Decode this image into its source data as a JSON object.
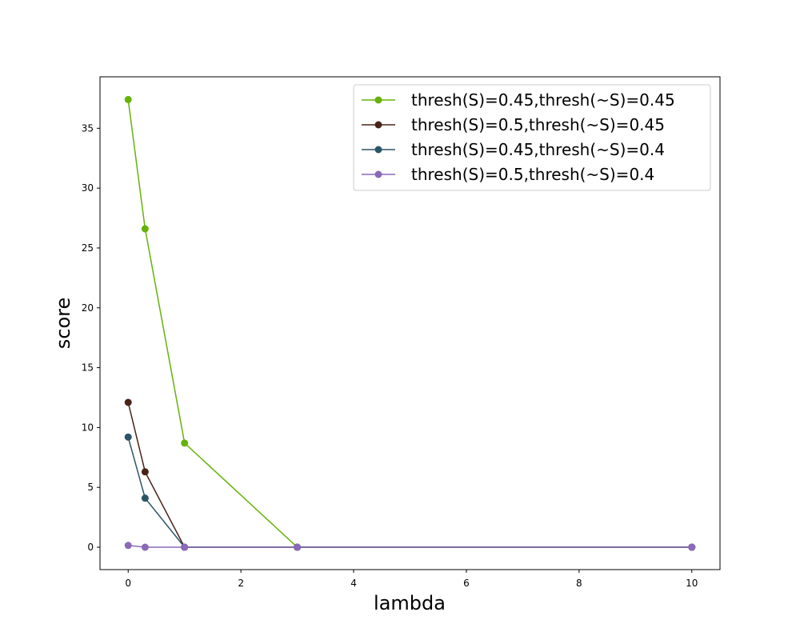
{
  "chart_data": {
    "type": "line",
    "xlabel": "lambda",
    "ylabel": "score",
    "xlim": [
      -0.5,
      10.5
    ],
    "ylim": [
      -1.87,
      39.3
    ],
    "xticks": [
      0,
      2,
      4,
      6,
      8,
      10
    ],
    "yticks": [
      0,
      5,
      10,
      15,
      20,
      25,
      30,
      35
    ],
    "grid": false,
    "legend_position": "top-right",
    "x": [
      0,
      0.3,
      1,
      3,
      10
    ],
    "series": [
      {
        "name": "thresh(S)=0.45,thresh(~S)=0.45",
        "color": "#66b20a",
        "values": [
          37.4,
          26.6,
          8.7,
          0,
          0
        ]
      },
      {
        "name": "thresh(S)=0.5,thresh(~S)=0.45",
        "color": "#4a2318",
        "values": [
          12.1,
          6.3,
          0,
          0,
          0
        ]
      },
      {
        "name": "thresh(S)=0.45,thresh(~S)=0.4",
        "color": "#2b5566",
        "values": [
          9.2,
          4.1,
          0,
          0,
          0
        ]
      },
      {
        "name": "thresh(S)=0.5,thresh(~S)=0.4",
        "color": "#8a6ab8",
        "values": [
          0.15,
          0,
          0,
          0,
          0
        ]
      }
    ]
  }
}
